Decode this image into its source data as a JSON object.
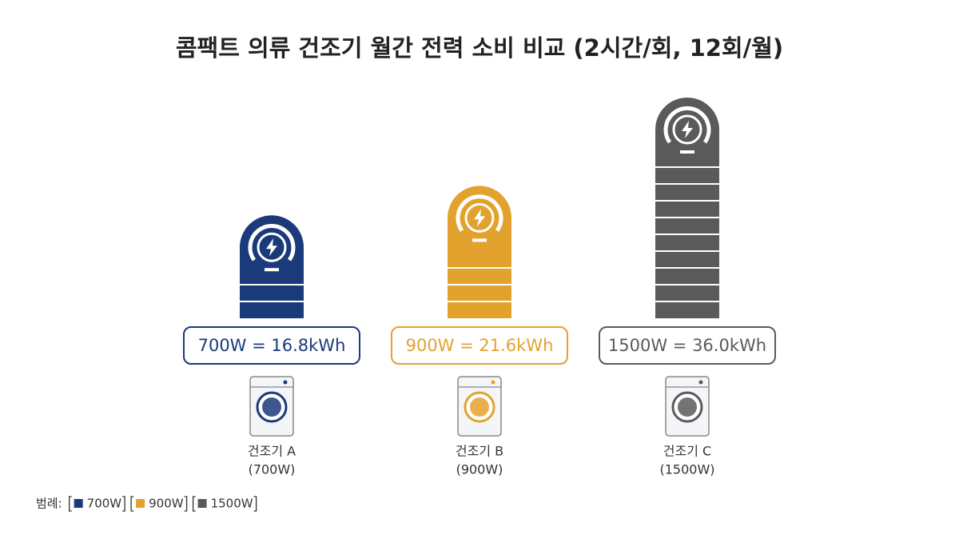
{
  "chart_data": {
    "type": "bar",
    "title": "콤팩트 의류 건조기 월간 전력 소비 비교 (2시간/회, 12회/월)",
    "categories": [
      "건조기 A",
      "건조기 B",
      "건조기 C"
    ],
    "category_notes": [
      "(700W)",
      "(900W)",
      "(1500W)"
    ],
    "values": [
      16.8,
      21.6,
      36.0
    ],
    "value_labels": [
      "700W = 16.8kWh",
      "900W = 21.6kWh",
      "1500W = 36.0kWh"
    ],
    "colors": [
      "#1b3a7a",
      "#e3a22e",
      "#5a5a5a"
    ],
    "legend_title": "범례:",
    "legend": [
      "700W",
      "900W",
      "1500W"
    ]
  }
}
